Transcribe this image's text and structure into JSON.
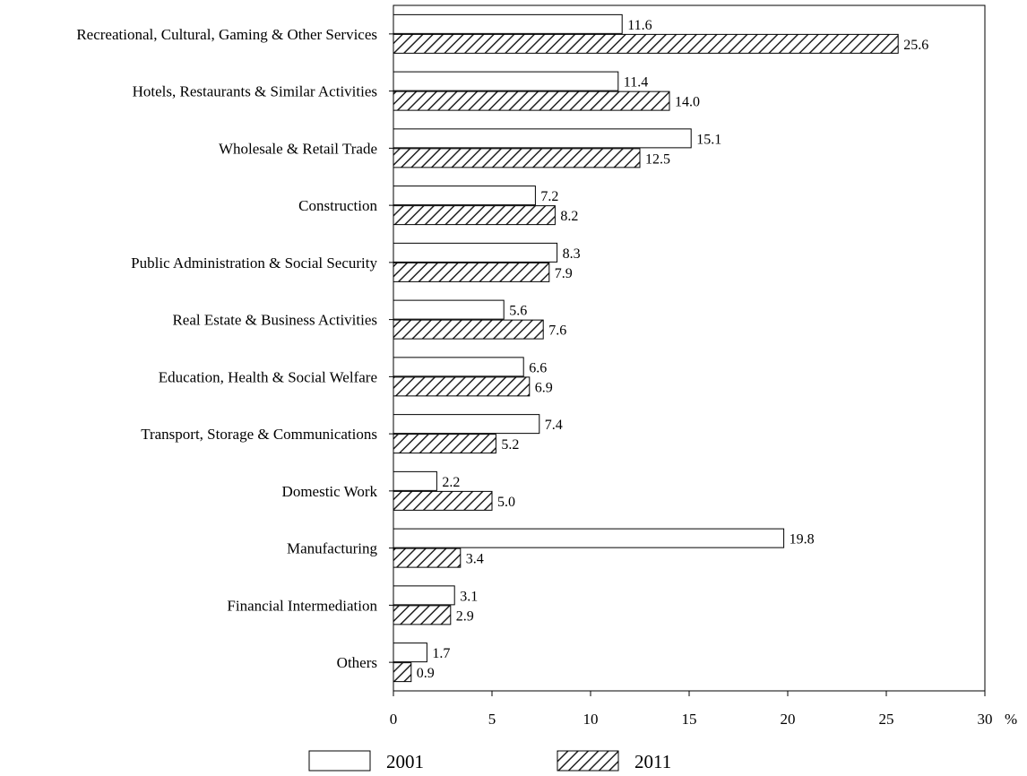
{
  "chart_data": {
    "type": "bar",
    "orientation": "horizontal",
    "title": "",
    "xlabel": "",
    "ylabel": "",
    "x_unit": "%",
    "xlim": [
      0,
      30
    ],
    "x_ticks": [
      "0",
      "5",
      "10",
      "15",
      "20",
      "25",
      "30"
    ],
    "grid": false,
    "legend_position": "bottom",
    "categories": [
      "Recreational, Cultural, Gaming & Other Services",
      "Hotels, Restaurants & Similar Activities",
      "Wholesale & Retail Trade",
      "Construction",
      "Public Administration & Social Security",
      "Real Estate & Business Activities",
      "Education, Health & Social Welfare",
      "Transport, Storage & Communications",
      "Domestic Work",
      "Manufacturing",
      "Financial Intermediation",
      "Others"
    ],
    "series": [
      {
        "name": "2001",
        "style": "plain",
        "color": "#ffffff",
        "values": [
          11.6,
          11.4,
          15.1,
          7.2,
          8.3,
          5.6,
          6.6,
          7.4,
          2.2,
          19.8,
          3.1,
          1.7
        ],
        "labels": [
          "11.6",
          "11.4",
          "15.1",
          "7.2",
          "8.3",
          "5.6",
          "6.6",
          "7.4",
          "2.2",
          "19.8",
          "3.1",
          "1.7"
        ]
      },
      {
        "name": "2011",
        "style": "hatched",
        "color": "#000000",
        "values": [
          25.6,
          14.0,
          12.5,
          8.2,
          7.9,
          7.6,
          6.9,
          5.2,
          5.0,
          3.4,
          2.9,
          0.9
        ],
        "labels": [
          "25.6",
          "14.0",
          "12.5",
          "8.2",
          "7.9",
          "7.6",
          "6.9",
          "5.2",
          "5.0",
          "3.4",
          "2.9",
          "0.9"
        ]
      }
    ]
  }
}
